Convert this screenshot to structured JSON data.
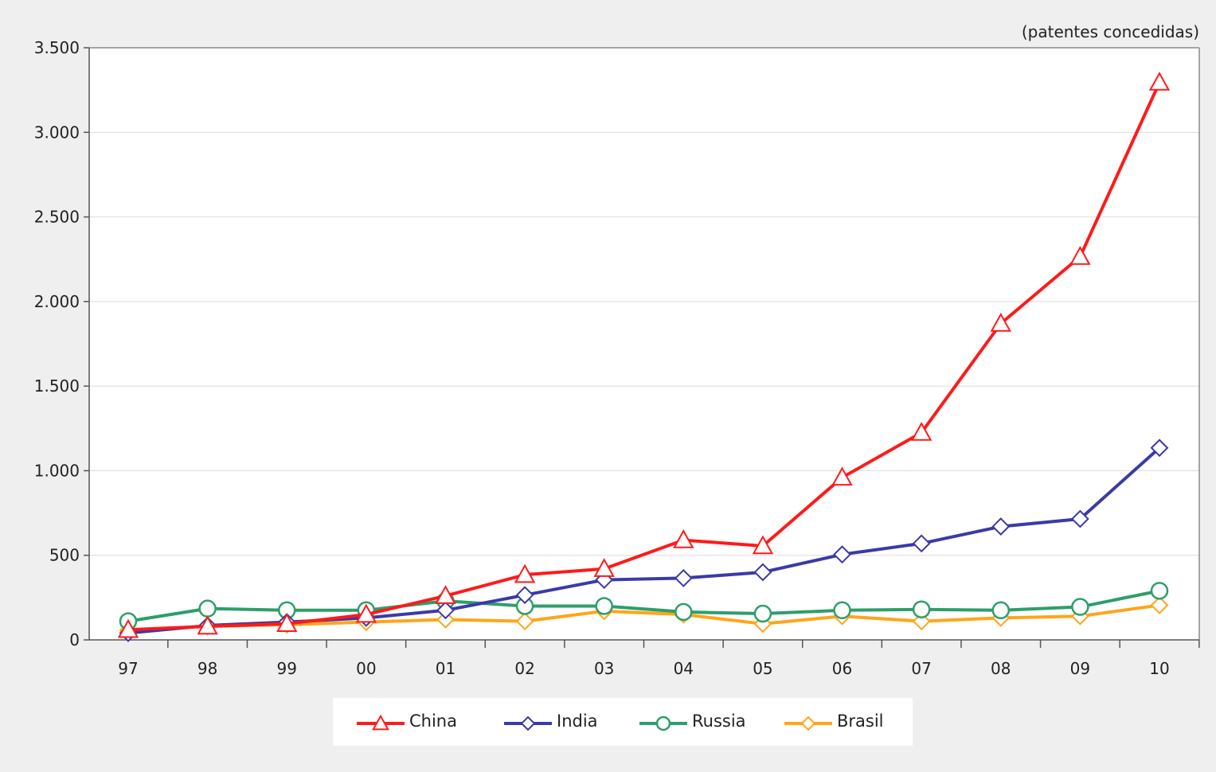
{
  "chart_data": {
    "type": "line",
    "unit_label": "(patentes concedidas)",
    "categories": [
      "97",
      "98",
      "99",
      "00",
      "01",
      "02",
      "03",
      "04",
      "05",
      "06",
      "07",
      "08",
      "09",
      "10"
    ],
    "y_ticks": [
      {
        "value": 0,
        "label": "0"
      },
      {
        "value": 500,
        "label": "500"
      },
      {
        "value": 1000,
        "label": "1.000"
      },
      {
        "value": 1500,
        "label": "1.500"
      },
      {
        "value": 2000,
        "label": "2.000"
      },
      {
        "value": 2500,
        "label": "2.500"
      },
      {
        "value": 3000,
        "label": "3.000"
      },
      {
        "value": 3500,
        "label": "3.500"
      }
    ],
    "ylim": [
      0,
      3500
    ],
    "grid": true,
    "legend_position": "bottom",
    "series": [
      {
        "name": "China",
        "color": "#ff1a1a",
        "marker": "triangle",
        "values": [
          60,
          80,
          95,
          150,
          260,
          385,
          420,
          590,
          555,
          960,
          1225,
          1870,
          2265,
          3295
        ]
      },
      {
        "name": "India",
        "color": "#3a3aa8",
        "marker": "diamond",
        "values": [
          40,
          85,
          105,
          130,
          175,
          265,
          355,
          365,
          400,
          505,
          570,
          670,
          715,
          1135
        ]
      },
      {
        "name": "Russia",
        "color": "#2e9e6a",
        "marker": "circle",
        "values": [
          110,
          185,
          175,
          175,
          230,
          200,
          200,
          165,
          155,
          175,
          180,
          175,
          195,
          290
        ]
      },
      {
        "name": "Brasil",
        "color": "#ffa51a",
        "marker": "diamond",
        "values": [
          55,
          80,
          90,
          105,
          120,
          110,
          170,
          150,
          95,
          140,
          110,
          130,
          140,
          205
        ]
      }
    ]
  }
}
